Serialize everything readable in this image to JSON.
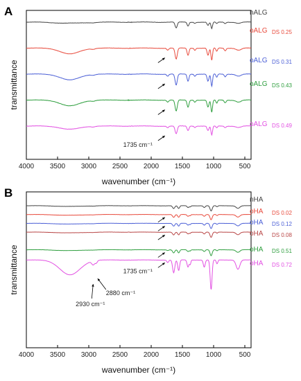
{
  "figure": {
    "panels": [
      "A",
      "B"
    ]
  },
  "chart_data": [
    {
      "type": "line",
      "panel": "A",
      "xlabel": "wavenumber (cm⁻¹)",
      "ylabel": "transmittance",
      "x_reversed": true,
      "xlim": [
        4000,
        400
      ],
      "xticks": [
        4000,
        3500,
        3000,
        2500,
        2000,
        1500,
        1000,
        500
      ],
      "y_units": "arbitrary (offset spectra)",
      "grid": false,
      "legend": "inline labels at right end of each trace",
      "series": [
        {
          "name": "nALG",
          "ds": "",
          "color": "#444444",
          "offset": 0.0,
          "bands": [
            [
              3300,
              0.08,
              450
            ],
            [
              2930,
              0.02,
              60
            ],
            [
              1600,
              0.45,
              35
            ],
            [
              1410,
              0.3,
              30
            ],
            [
              1300,
              0.08,
              25
            ],
            [
              1090,
              0.25,
              30
            ],
            [
              1030,
              0.5,
              25
            ],
            [
              950,
              0.12,
              25
            ],
            [
              815,
              0.1,
              30
            ],
            [
              600,
              0.08,
              80
            ]
          ]
        },
        {
          "name": "oALG",
          "ds": "DS 0.25",
          "color": "#e84a3c",
          "offset": 1.0,
          "bands": [
            [
              3300,
              0.45,
              300
            ],
            [
              2930,
              0.06,
              60
            ],
            [
              1735,
              0.15,
              30
            ],
            [
              1600,
              0.85,
              35
            ],
            [
              1410,
              0.55,
              30
            ],
            [
              1300,
              0.15,
              25
            ],
            [
              1090,
              0.55,
              30
            ],
            [
              1030,
              0.95,
              25
            ],
            [
              950,
              0.25,
              25
            ],
            [
              815,
              0.2,
              30
            ],
            [
              600,
              0.15,
              80
            ]
          ]
        },
        {
          "name": "oALG",
          "ds": "DS 0.31",
          "color": "#4b5fd6",
          "offset": 2.0,
          "bands": [
            [
              3300,
              0.45,
              300
            ],
            [
              2930,
              0.06,
              60
            ],
            [
              1735,
              0.15,
              30
            ],
            [
              1600,
              0.85,
              35
            ],
            [
              1410,
              0.55,
              30
            ],
            [
              1300,
              0.15,
              25
            ],
            [
              1090,
              0.55,
              30
            ],
            [
              1030,
              0.95,
              25
            ],
            [
              950,
              0.25,
              25
            ],
            [
              815,
              0.2,
              30
            ],
            [
              600,
              0.15,
              80
            ]
          ]
        },
        {
          "name": "oALG",
          "ds": "DS 0.43",
          "color": "#2e9e3e",
          "offset": 3.0,
          "bands": [
            [
              3300,
              0.45,
              300
            ],
            [
              2930,
              0.06,
              60
            ],
            [
              1735,
              0.15,
              30
            ],
            [
              1600,
              0.85,
              35
            ],
            [
              1410,
              0.55,
              30
            ],
            [
              1300,
              0.15,
              25
            ],
            [
              1090,
              0.55,
              30
            ],
            [
              1030,
              0.95,
              25
            ],
            [
              950,
              0.25,
              25
            ],
            [
              815,
              0.2,
              30
            ],
            [
              600,
              0.15,
              80
            ]
          ]
        },
        {
          "name": "oALG",
          "ds": "DS 0.49",
          "color": "#e24fe2",
          "offset": 4.0,
          "bands": [
            [
              3300,
              0.25,
              300
            ],
            [
              2930,
              0.05,
              60
            ],
            [
              1735,
              0.12,
              30
            ],
            [
              1600,
              0.6,
              35
            ],
            [
              1410,
              0.35,
              30
            ],
            [
              1300,
              0.1,
              25
            ],
            [
              1090,
              0.35,
              30
            ],
            [
              1030,
              0.7,
              25
            ],
            [
              950,
              0.15,
              25
            ],
            [
              815,
              0.12,
              30
            ],
            [
              600,
              0.1,
              80
            ]
          ]
        }
      ],
      "annotations": [
        {
          "text": "1735 cm⁻¹",
          "x": 1735
        }
      ]
    },
    {
      "type": "line",
      "panel": "B",
      "xlabel": "wavenumber (cm⁻¹)",
      "ylabel": "transmittance",
      "x_reversed": true,
      "xlim": [
        4000,
        400
      ],
      "xticks": [
        4000,
        3500,
        3000,
        2500,
        2000,
        1500,
        1000,
        500
      ],
      "y_units": "arbitrary (offset spectra)",
      "grid": false,
      "legend": "inline labels at right end of each trace",
      "series": [
        {
          "name": "nHA",
          "ds": "",
          "color": "#444444",
          "offset": 0.0,
          "bands": [
            [
              3300,
              0.1,
              400
            ],
            [
              2930,
              0.02,
              60
            ],
            [
              1640,
              0.4,
              35
            ],
            [
              1560,
              0.4,
              30
            ],
            [
              1410,
              0.25,
              30
            ],
            [
              1375,
              0.15,
              20
            ],
            [
              1150,
              0.25,
              30
            ],
            [
              1040,
              0.75,
              35
            ],
            [
              945,
              0.15,
              25
            ],
            [
              610,
              0.35,
              60
            ]
          ]
        },
        {
          "name": "oHA",
          "ds": "DS 0.02",
          "color": "#e84a3c",
          "offset": 0.62,
          "bands": [
            [
              3300,
              0.1,
              400
            ],
            [
              2930,
              0.02,
              60
            ],
            [
              1640,
              0.4,
              35
            ],
            [
              1560,
              0.4,
              30
            ],
            [
              1410,
              0.25,
              30
            ],
            [
              1375,
              0.15,
              20
            ],
            [
              1150,
              0.25,
              30
            ],
            [
              1040,
              0.75,
              35
            ],
            [
              945,
              0.15,
              25
            ],
            [
              610,
              0.35,
              60
            ]
          ]
        },
        {
          "name": "oHA",
          "ds": "DS 0.12",
          "color": "#4b5fd6",
          "offset": 1.24,
          "bands": [
            [
              3300,
              0.1,
              400
            ],
            [
              2930,
              0.02,
              60
            ],
            [
              1640,
              0.4,
              35
            ],
            [
              1560,
              0.4,
              30
            ],
            [
              1410,
              0.25,
              30
            ],
            [
              1375,
              0.15,
              20
            ],
            [
              1150,
              0.25,
              30
            ],
            [
              1040,
              0.75,
              35
            ],
            [
              945,
              0.15,
              25
            ],
            [
              610,
              0.35,
              60
            ]
          ]
        },
        {
          "name": "oHA",
          "ds": "DS 0.08",
          "color": "#b84545",
          "offset": 1.86,
          "bands": [
            [
              3300,
              0.1,
              400
            ],
            [
              2930,
              0.02,
              60
            ],
            [
              1640,
              0.4,
              35
            ],
            [
              1560,
              0.4,
              30
            ],
            [
              1410,
              0.25,
              30
            ],
            [
              1375,
              0.15,
              20
            ],
            [
              1150,
              0.25,
              30
            ],
            [
              1040,
              0.75,
              35
            ],
            [
              945,
              0.15,
              25
            ],
            [
              610,
              0.35,
              60
            ]
          ]
        },
        {
          "name": "oHA",
          "ds": "DS 0.51",
          "color": "#2e9e3e",
          "offset": 3.1,
          "bands": [
            [
              3300,
              0.12,
              400
            ],
            [
              2930,
              0.02,
              60
            ],
            [
              1735,
              0.1,
              30
            ],
            [
              1640,
              0.45,
              35
            ],
            [
              1560,
              0.45,
              30
            ],
            [
              1410,
              0.25,
              30
            ],
            [
              1375,
              0.15,
              20
            ],
            [
              1150,
              0.25,
              30
            ],
            [
              1040,
              0.85,
              35
            ],
            [
              945,
              0.15,
              25
            ],
            [
              610,
              0.35,
              60
            ]
          ]
        },
        {
          "name": "oHA",
          "ds": "DS 0.72",
          "color": "#e24fe2",
          "offset": 3.82,
          "bands": [
            [
              3300,
              2.1,
              320
            ],
            [
              2930,
              0.55,
              45
            ],
            [
              2880,
              0.35,
              35
            ],
            [
              1735,
              0.35,
              30
            ],
            [
              1640,
              1.8,
              35
            ],
            [
              1560,
              1.5,
              30
            ],
            [
              1410,
              1.0,
              30
            ],
            [
              1375,
              0.6,
              20
            ],
            [
              1150,
              1.0,
              30
            ],
            [
              1040,
              4.2,
              30
            ],
            [
              945,
              0.55,
              25
            ],
            [
              610,
              1.3,
              60
            ]
          ]
        }
      ],
      "annotations": [
        {
          "text": "1735 cm⁻¹",
          "x": 1735
        },
        {
          "text": "2930 cm⁻¹",
          "x": 2930
        },
        {
          "text": "2880 cm⁻¹",
          "x": 2880
        }
      ]
    }
  ]
}
